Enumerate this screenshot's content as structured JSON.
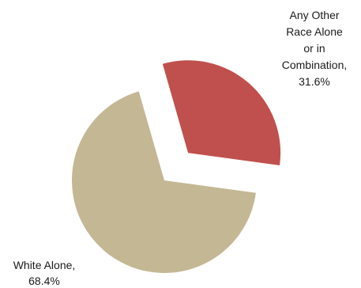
{
  "chart_data": {
    "type": "pie",
    "title": "",
    "slices": [
      {
        "label": "Any Other Race Alone or in Combination",
        "value": 31.6,
        "value_label": "31.6%",
        "color": "#c0504d",
        "exploded": true,
        "label_lines": [
          "Any Other",
          "Race Alone",
          "or in",
          "Combination,",
          "31.6%"
        ]
      },
      {
        "label": "White Alone",
        "value": 68.4,
        "value_label": "68.4%",
        "color": "#c4b794",
        "exploded": false,
        "label_lines": [
          "White Alone,",
          "68.4%"
        ]
      }
    ],
    "legend": "none"
  }
}
